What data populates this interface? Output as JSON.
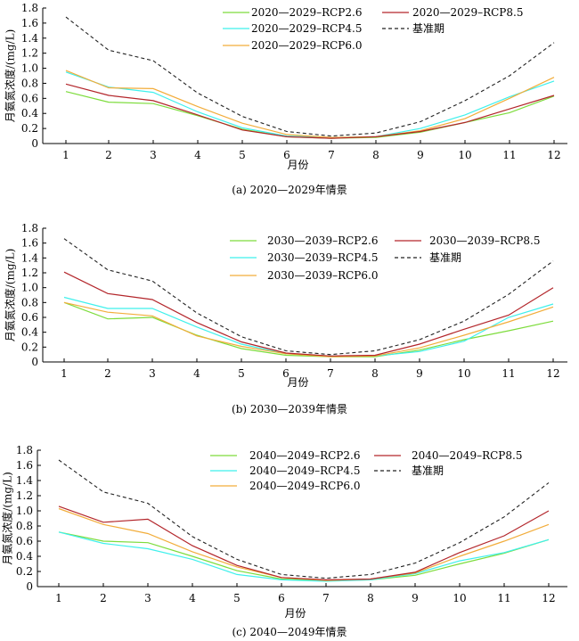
{
  "chart_data": [
    {
      "type": "line",
      "caption": "(a) 2020—2029年情景",
      "xlabel": "月份",
      "ylabel": "月氨氮浓度/(mg/L)",
      "x": [
        1,
        2,
        3,
        4,
        5,
        6,
        7,
        8,
        9,
        10,
        11,
        12
      ],
      "xticks": [
        "1",
        "2",
        "3",
        "4",
        "5",
        "6",
        "7",
        "8",
        "9",
        "10",
        "11",
        "12"
      ],
      "yticks": [
        "0",
        "0.2",
        "0.4",
        "0.6",
        "0.8",
        "1.0",
        "1.2",
        "1.4",
        "1.6",
        "1.8"
      ],
      "ylim": [
        0,
        1.8
      ],
      "grid": false,
      "series": [
        {
          "name": "2020—2029–RCP2.6",
          "color": "#7ddc3c",
          "dash": false,
          "values": [
            0.69,
            0.55,
            0.53,
            0.37,
            0.19,
            0.09,
            0.07,
            0.08,
            0.15,
            0.28,
            0.41,
            0.63
          ]
        },
        {
          "name": "2020—2029–RCP4.5",
          "color": "#3ff0ec",
          "dash": false,
          "values": [
            0.95,
            0.75,
            0.68,
            0.42,
            0.21,
            0.1,
            0.08,
            0.09,
            0.2,
            0.38,
            0.62,
            0.83
          ]
        },
        {
          "name": "2020—2029–RCP6.0",
          "color": "#f2ad3b",
          "dash": false,
          "values": [
            0.97,
            0.74,
            0.73,
            0.49,
            0.27,
            0.12,
            0.08,
            0.09,
            0.17,
            0.33,
            0.6,
            0.88
          ]
        },
        {
          "name": "2020—2029–RCP8.5",
          "color": "#b3262b",
          "dash": false,
          "values": [
            0.79,
            0.64,
            0.57,
            0.38,
            0.18,
            0.09,
            0.07,
            0.09,
            0.16,
            0.28,
            0.46,
            0.64
          ]
        },
        {
          "name": "基准期",
          "color": "#222222",
          "dash": true,
          "values": [
            1.68,
            1.24,
            1.1,
            0.67,
            0.36,
            0.16,
            0.1,
            0.14,
            0.29,
            0.57,
            0.9,
            1.34
          ]
        }
      ],
      "legend": {
        "columns": [
          [
            "2020—2029–RCP2.6",
            "2020—2029–RCP4.5",
            "2020—2029–RCP6.0"
          ],
          [
            "2020—2029–RCP8.5",
            "基准期"
          ]
        ]
      }
    },
    {
      "type": "line",
      "caption": "(b) 2030—2039年情景",
      "xlabel": "月份",
      "ylabel": "月氨氮浓度/(mg/L)",
      "x": [
        1,
        2,
        3,
        4,
        5,
        6,
        7,
        8,
        9,
        10,
        11,
        12
      ],
      "xticks": [
        "1",
        "2",
        "3",
        "4",
        "5",
        "6",
        "7",
        "8",
        "9",
        "10",
        "11",
        "12"
      ],
      "yticks": [
        "0",
        "0.2",
        "0.4",
        "0.6",
        "0.8",
        "1.0",
        "1.2",
        "1.4",
        "1.6",
        "1.8"
      ],
      "ylim": [
        0,
        1.8
      ],
      "grid": false,
      "series": [
        {
          "name": "2030—2039–RCP2.6",
          "color": "#7ddc3c",
          "dash": false,
          "values": [
            0.8,
            0.58,
            0.6,
            0.36,
            0.18,
            0.09,
            0.07,
            0.07,
            0.16,
            0.3,
            0.42,
            0.55
          ]
        },
        {
          "name": "2030—2039–RCP4.5",
          "color": "#3ff0ec",
          "dash": false,
          "values": [
            0.87,
            0.72,
            0.72,
            0.47,
            0.24,
            0.11,
            0.08,
            0.08,
            0.14,
            0.28,
            0.6,
            0.78
          ]
        },
        {
          "name": "2030—2039–RCP6.0",
          "color": "#f2ad3b",
          "dash": false,
          "values": [
            0.8,
            0.67,
            0.62,
            0.35,
            0.21,
            0.11,
            0.07,
            0.08,
            0.19,
            0.36,
            0.54,
            0.74
          ]
        },
        {
          "name": "2030—2039–RCP8.5",
          "color": "#b3262b",
          "dash": false,
          "values": [
            1.21,
            0.92,
            0.84,
            0.53,
            0.27,
            0.12,
            0.08,
            0.09,
            0.24,
            0.44,
            0.63,
            1.0
          ]
        },
        {
          "name": "基准期",
          "color": "#222222",
          "dash": true,
          "values": [
            1.66,
            1.24,
            1.09,
            0.66,
            0.34,
            0.15,
            0.1,
            0.15,
            0.3,
            0.55,
            0.91,
            1.36
          ]
        }
      ],
      "legend": {
        "columns": [
          [
            "2030—2039–RCP2.6",
            "2030—2039–RCP4.5",
            "2030—2039–RCP6.0"
          ],
          [
            "2030—2039–RCP8.5",
            "基准期"
          ]
        ]
      }
    },
    {
      "type": "line",
      "caption": "(c) 2040—2049年情景",
      "xlabel": "月份",
      "ylabel": "月氨氮浓度/(mg/L)",
      "x": [
        1,
        2,
        3,
        4,
        5,
        6,
        7,
        8,
        9,
        10,
        11,
        12
      ],
      "xticks": [
        "1",
        "2",
        "3",
        "4",
        "5",
        "6",
        "7",
        "8",
        "9",
        "10",
        "11",
        "12"
      ],
      "yticks": [
        "0",
        "0.2",
        "0.4",
        "0.6",
        "0.8",
        "1.0",
        "1.2",
        "1.4",
        "1.6",
        "1.8"
      ],
      "ylim": [
        0,
        1.8
      ],
      "grid": false,
      "series": [
        {
          "name": "2040—2049–RCP2.6",
          "color": "#7ddc3c",
          "dash": false,
          "values": [
            0.72,
            0.6,
            0.58,
            0.4,
            0.21,
            0.1,
            0.08,
            0.09,
            0.15,
            0.3,
            0.44,
            0.62
          ]
        },
        {
          "name": "2040—2049–RCP4.5",
          "color": "#3ff0ec",
          "dash": false,
          "values": [
            0.72,
            0.57,
            0.5,
            0.36,
            0.16,
            0.09,
            0.07,
            0.09,
            0.17,
            0.34,
            0.45,
            0.62
          ]
        },
        {
          "name": "2040—2049–RCP6.0",
          "color": "#f2ad3b",
          "dash": false,
          "values": [
            1.03,
            0.82,
            0.7,
            0.46,
            0.26,
            0.12,
            0.08,
            0.1,
            0.18,
            0.4,
            0.6,
            0.82
          ]
        },
        {
          "name": "2040—2049–RCP8.5",
          "color": "#b3262b",
          "dash": false,
          "values": [
            1.06,
            0.85,
            0.89,
            0.54,
            0.28,
            0.12,
            0.09,
            0.1,
            0.19,
            0.45,
            0.67,
            1.0
          ]
        },
        {
          "name": "基准期",
          "color": "#222222",
          "dash": true,
          "values": [
            1.67,
            1.25,
            1.1,
            0.66,
            0.36,
            0.16,
            0.11,
            0.16,
            0.31,
            0.58,
            0.92,
            1.37
          ]
        }
      ],
      "legend": {
        "columns": [
          [
            "2040—2049–RCP2.6",
            "2040—2049–RCP4.5",
            "2040—2049–RCP6.0"
          ],
          [
            "2040—2049–RCP8.5",
            "基准期"
          ]
        ]
      }
    }
  ]
}
